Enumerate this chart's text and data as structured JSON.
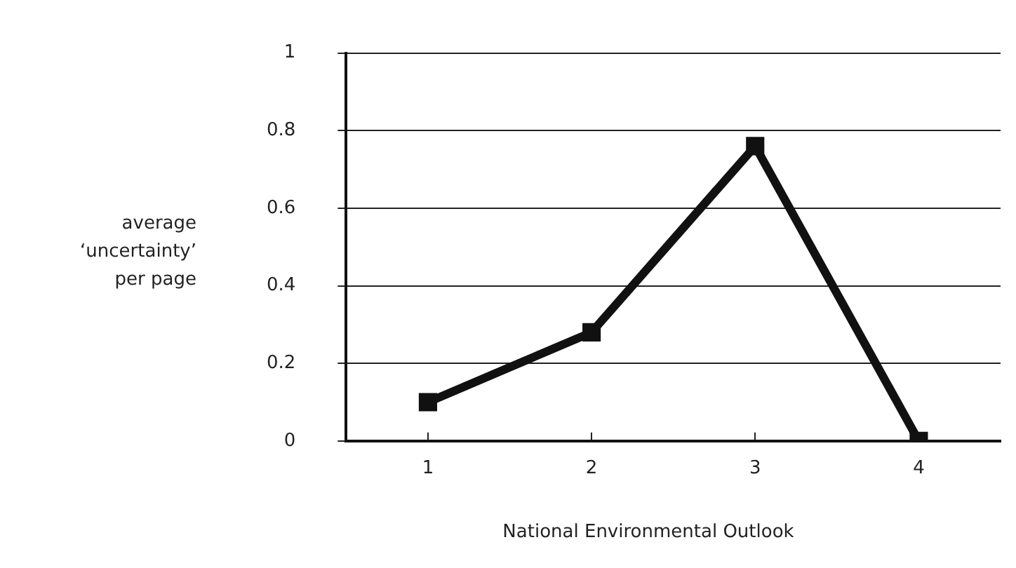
{
  "chart_data": {
    "type": "line",
    "xlabel": "National Environmental Outlook",
    "ylabel": "average ‘uncertainty’ per page",
    "categories": [
      "1",
      "2",
      "3",
      "4"
    ],
    "series": [
      {
        "color": "#111111",
        "values": [
          0.1,
          0.28,
          0.76,
          0
        ]
      }
    ],
    "ylim": [
      0,
      1
    ],
    "yticks": [
      0,
      0.2,
      0.4,
      0.6,
      0.8,
      1
    ],
    "grid": "y",
    "marker": "square",
    "line_style": "solid",
    "legend": false
  }
}
